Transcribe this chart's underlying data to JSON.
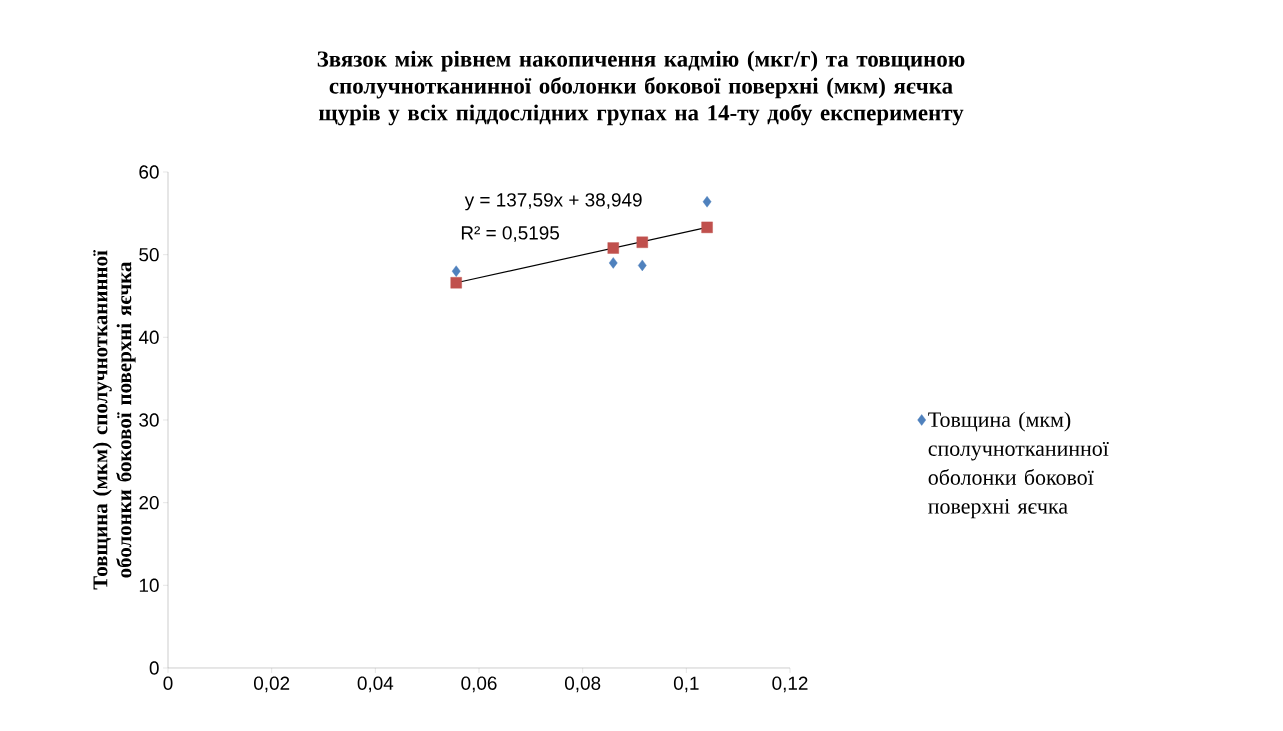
{
  "chart_data": {
    "type": "scatter",
    "title": "Звязок між рівнем накопичення кадмію (мкг/г) та товщиною сполучнотканинної оболонки бокової поверхні (мкм)  яєчка щурів у всіх  піддослідних групах  на 14-ту добу експерименту",
    "ylabel": "Товщина (мкм) сполучнотканинної оболонки бокової поверхні яєчка",
    "x": [
      0.0556,
      0.0859,
      0.0915,
      0.104
    ],
    "series": [
      {
        "name": "Товщина (мкм) сполучнотканинної оболонки бокової поверхні яєчка",
        "color": "#4f81bd",
        "marker": "diamond",
        "values": [
          48.0,
          49.0,
          48.7,
          56.4
        ]
      },
      {
        "color": "#c0504d",
        "marker": "square",
        "values": [
          46.6,
          50.8,
          51.5,
          53.3
        ]
      },
      {
        "type": "line",
        "color": "#000000",
        "marker": "none",
        "x": [
          0.0556,
          0.104
        ],
        "values": [
          46.6,
          53.3
        ]
      }
    ],
    "annotations": [
      "y = 137,59x + 38,949",
      "R² = 0,5195"
    ],
    "xlim": [
      0,
      0.12
    ],
    "ylim": [
      0,
      60
    ],
    "xticks": [
      0,
      {
        "value": 0.02,
        "label": "0,02"
      },
      {
        "value": 0.04,
        "label": "0,04"
      },
      {
        "value": 0.06,
        "label": "0,06"
      },
      {
        "value": 0.08,
        "label": "0,08"
      },
      {
        "value": 0.1,
        "label": "0,1"
      },
      {
        "value": 0.12,
        "label": "0,12"
      }
    ],
    "yticks": [
      0,
      10,
      20,
      30,
      40,
      50,
      60
    ],
    "grid": false,
    "legend": "right"
  }
}
